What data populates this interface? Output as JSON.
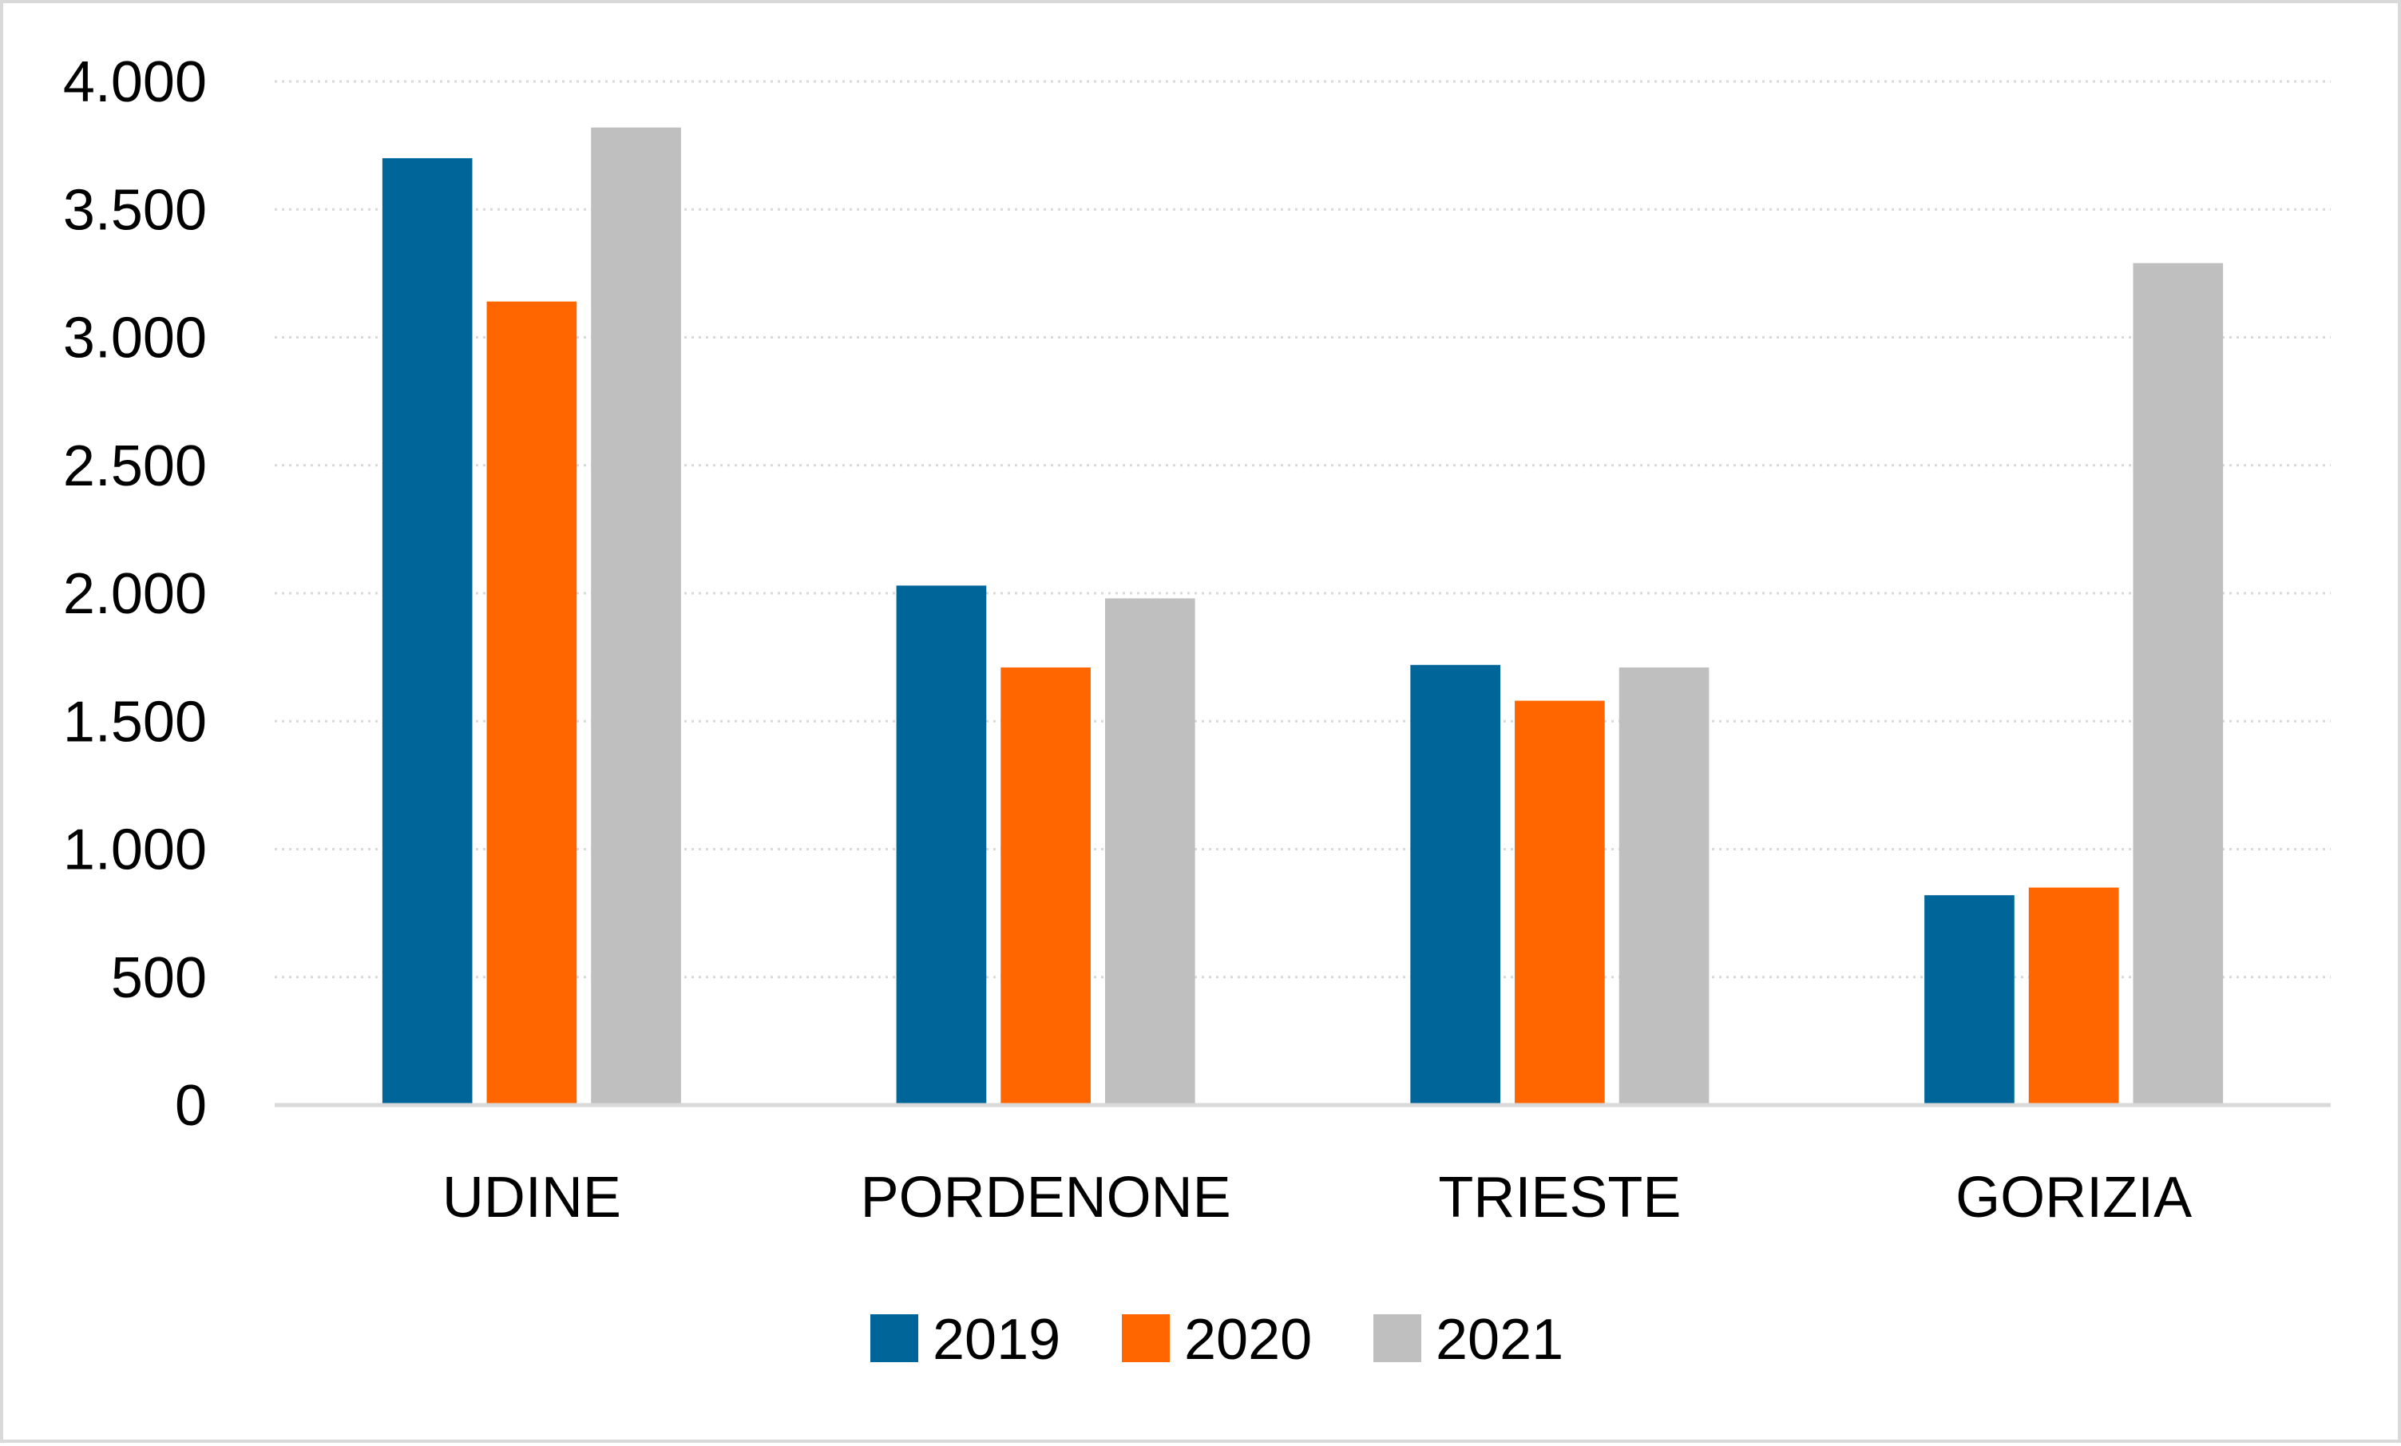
{
  "chart_data": {
    "type": "bar",
    "categories": [
      "UDINE",
      "PORDENONE",
      "TRIESTE",
      "GORIZIA"
    ],
    "series": [
      {
        "name": "2019",
        "color": "#006699",
        "values": [
          3700,
          2030,
          1720,
          820
        ]
      },
      {
        "name": "2020",
        "color": "#ff6600",
        "values": [
          3140,
          1710,
          1580,
          850
        ]
      },
      {
        "name": "2021",
        "color": "#bfbfbf",
        "values": [
          3820,
          1980,
          1710,
          3290
        ]
      }
    ],
    "ylim": [
      0,
      4000
    ],
    "yticks": [
      0,
      500,
      1000,
      1500,
      2000,
      2500,
      3000,
      3500,
      4000
    ],
    "ytick_labels": [
      "0",
      "500",
      "1.000",
      "1.500",
      "2.000",
      "2.500",
      "3.000",
      "3.500",
      "4.000"
    ],
    "title": "",
    "xlabel": "",
    "ylabel": "",
    "grid": "horizontal dotted",
    "legend_position": "bottom"
  }
}
